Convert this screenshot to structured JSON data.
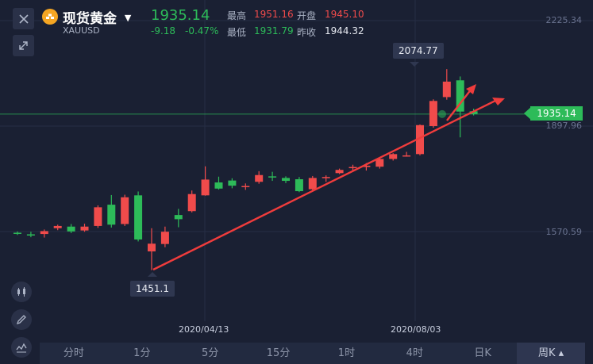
{
  "header": {
    "title": "现货黄金",
    "symbol": "XAUUSD",
    "price": "1935.14",
    "change": "-9.18",
    "change_pct": "-0.47%",
    "high_label": "最高",
    "high": "1951.16",
    "open_label": "开盘",
    "open": "1945.10",
    "low_label": "最低",
    "low": "1931.79",
    "prev_close_label": "昨收",
    "prev_close": "1944.32"
  },
  "icons": {
    "close": "close-icon",
    "expand": "expand-icon",
    "gold": "gold-bars-icon",
    "dropdown": "caret-down-icon",
    "candles": "candlestick-icon",
    "draw": "pen-icon",
    "indicator": "indicator-line-icon"
  },
  "colors": {
    "background": "#1a2033",
    "up": "#f04b4b",
    "down": "#2dbb59",
    "annotation": "#f03c3c",
    "gold_icon": "#f5a623"
  },
  "chart_data": {
    "type": "candlestick",
    "timeframe": "周K",
    "y_ticks": [
      "2225.34",
      "1897.96",
      "1570.59"
    ],
    "x_ticks": [
      "2020/04/13",
      "2020/08/03"
    ],
    "last_price_tag": "1935.14",
    "callouts": {
      "low": "1451.1",
      "high": "2074.77"
    },
    "candles": [
      {
        "o": 1567,
        "h": 1571,
        "l": 1560,
        "c": 1566
      },
      {
        "o": 1562,
        "h": 1570,
        "l": 1553,
        "c": 1559
      },
      {
        "o": 1563,
        "h": 1577,
        "l": 1552,
        "c": 1572
      },
      {
        "o": 1581,
        "h": 1592,
        "l": 1575,
        "c": 1588
      },
      {
        "o": 1586,
        "h": 1594,
        "l": 1566,
        "c": 1571
      },
      {
        "o": 1574,
        "h": 1595,
        "l": 1570,
        "c": 1586
      },
      {
        "o": 1588,
        "h": 1652,
        "l": 1582,
        "c": 1646
      },
      {
        "o": 1654,
        "h": 1684,
        "l": 1583,
        "c": 1592
      },
      {
        "o": 1594,
        "h": 1685,
        "l": 1588,
        "c": 1677
      },
      {
        "o": 1683,
        "h": 1695,
        "l": 1540,
        "c": 1546
      },
      {
        "o": 1509,
        "h": 1581,
        "l": 1451,
        "c": 1533
      },
      {
        "o": 1532,
        "h": 1586,
        "l": 1522,
        "c": 1570
      },
      {
        "o": 1622,
        "h": 1641,
        "l": 1584,
        "c": 1609
      },
      {
        "o": 1634,
        "h": 1698,
        "l": 1630,
        "c": 1687
      },
      {
        "o": 1683,
        "h": 1773,
        "l": 1682,
        "c": 1732
      },
      {
        "o": 1723,
        "h": 1741,
        "l": 1701,
        "c": 1704
      },
      {
        "o": 1729,
        "h": 1736,
        "l": 1705,
        "c": 1713
      },
      {
        "o": 1710,
        "h": 1720,
        "l": 1700,
        "c": 1712
      },
      {
        "o": 1725,
        "h": 1758,
        "l": 1719,
        "c": 1746
      },
      {
        "o": 1742,
        "h": 1756,
        "l": 1728,
        "c": 1740
      },
      {
        "o": 1737,
        "h": 1742,
        "l": 1721,
        "c": 1728
      },
      {
        "o": 1733,
        "h": 1740,
        "l": 1693,
        "c": 1696
      },
      {
        "o": 1702,
        "h": 1743,
        "l": 1697,
        "c": 1737
      },
      {
        "o": 1738,
        "h": 1745,
        "l": 1725,
        "c": 1740
      },
      {
        "o": 1752,
        "h": 1766,
        "l": 1749,
        "c": 1762
      },
      {
        "o": 1768,
        "h": 1778,
        "l": 1758,
        "c": 1771
      },
      {
        "o": 1771,
        "h": 1783,
        "l": 1760,
        "c": 1775
      },
      {
        "o": 1772,
        "h": 1800,
        "l": 1766,
        "c": 1796
      },
      {
        "o": 1796,
        "h": 1814,
        "l": 1791,
        "c": 1811
      },
      {
        "o": 1806,
        "h": 1818,
        "l": 1803,
        "c": 1807
      },
      {
        "o": 1811,
        "h": 1903,
        "l": 1807,
        "c": 1901
      },
      {
        "o": 1898,
        "h": 1981,
        "l": 1893,
        "c": 1976
      },
      {
        "o": 1988,
        "h": 2074.77,
        "l": 1980,
        "c": 2036
      },
      {
        "o": 2040,
        "h": 2052,
        "l": 1863,
        "c": 1943
      },
      {
        "o": 1944,
        "h": 1952,
        "l": 1931,
        "c": 1935
      }
    ]
  },
  "timeframes": [
    {
      "label": "分时",
      "active": false
    },
    {
      "label": "1分",
      "active": false
    },
    {
      "label": "5分",
      "active": false
    },
    {
      "label": "15分",
      "active": false
    },
    {
      "label": "1时",
      "active": false
    },
    {
      "label": "4时",
      "active": false
    },
    {
      "label": "日K",
      "active": false
    },
    {
      "label": "周K",
      "active": true
    }
  ]
}
